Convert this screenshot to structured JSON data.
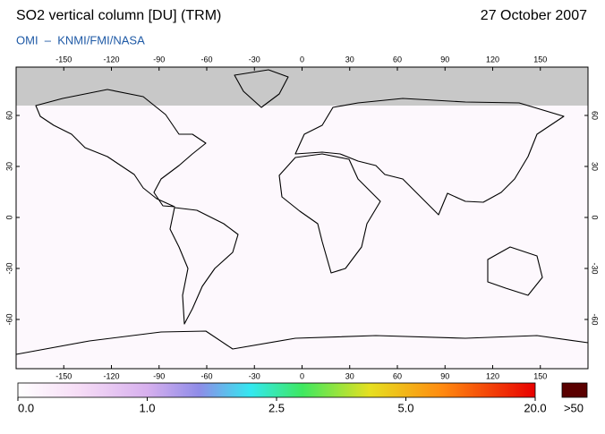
{
  "header": {
    "title": "SO2 vertical column [DU] (TRM)",
    "date": "27 October 2007",
    "subtitle": "OMI  –  KNMI/FMI/NASA"
  },
  "map": {
    "lon_lim": [
      -180,
      180
    ],
    "lat_lim": [
      -90,
      90
    ],
    "lon_ticks": [
      -150,
      -120,
      -90,
      -60,
      -30,
      0,
      30,
      60,
      90,
      120,
      150
    ],
    "lat_ticks": [
      60,
      30,
      0,
      -30,
      -60
    ]
  },
  "colorbar": {
    "ticks": [
      {
        "value": 0,
        "label": "0.0"
      },
      {
        "value": 1,
        "label": "1.0"
      },
      {
        "value": 2.5,
        "label": "2.5"
      },
      {
        "value": 5,
        "label": "5.0"
      },
      {
        "value": 20,
        "label": "20.0"
      }
    ],
    "overflow_label": ">50"
  }
}
